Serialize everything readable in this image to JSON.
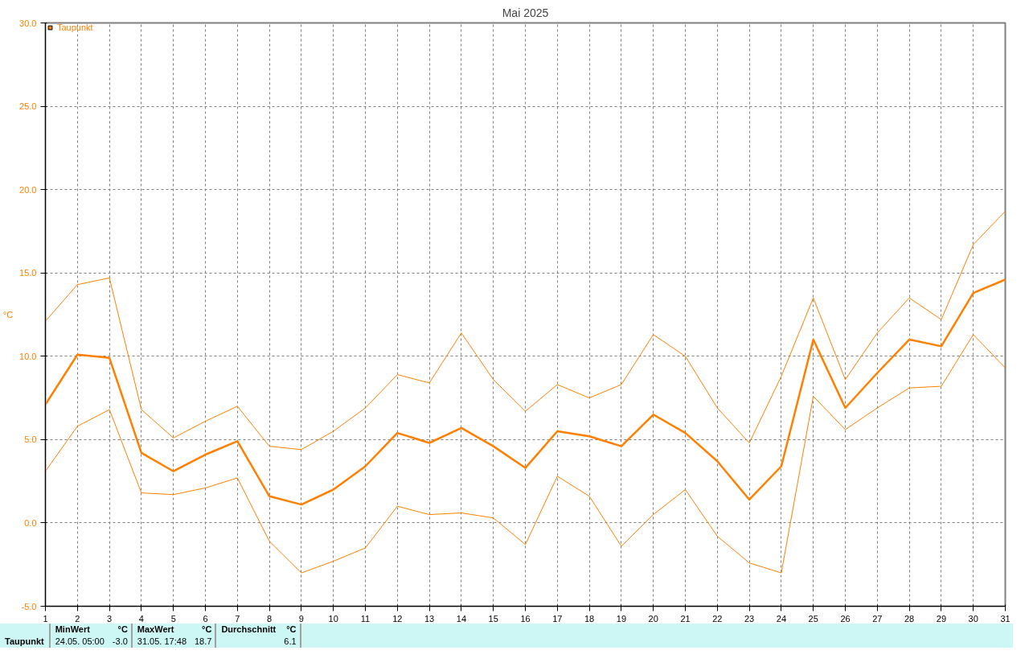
{
  "chart_data": {
    "type": "line",
    "title": "Mai 2025",
    "ylabel": "°C",
    "x": [
      1,
      2,
      3,
      4,
      5,
      6,
      7,
      8,
      9,
      10,
      11,
      12,
      13,
      14,
      15,
      16,
      17,
      18,
      19,
      20,
      21,
      22,
      23,
      24,
      25,
      26,
      27,
      28,
      29,
      30,
      31
    ],
    "series": [
      {
        "name": "Taupunkt",
        "color": "#ff8000",
        "values": [
          7.1,
          10.1,
          9.9,
          4.2,
          3.1,
          4.1,
          4.9,
          1.6,
          1.1,
          2.0,
          3.4,
          5.4,
          4.8,
          5.7,
          4.6,
          3.3,
          5.5,
          5.2,
          4.6,
          6.5,
          5.4,
          3.7,
          1.4,
          3.4,
          11.0,
          6.9,
          9.0,
          11.0,
          10.6,
          13.8,
          14.6
        ]
      },
      {
        "color": "#ff8000",
        "values": [
          12.1,
          14.3,
          14.7,
          6.8,
          5.1,
          6.1,
          7.0,
          4.6,
          4.4,
          5.5,
          6.9,
          8.9,
          8.4,
          11.4,
          8.6,
          6.7,
          8.3,
          7.5,
          8.3,
          11.3,
          10.0,
          6.9,
          4.8,
          8.8,
          13.5,
          8.6,
          11.4,
          13.5,
          12.2,
          16.7,
          18.7
        ]
      },
      {
        "color": "#ff8000",
        "values": [
          3.1,
          5.8,
          6.8,
          1.8,
          1.7,
          2.1,
          2.7,
          -1.1,
          -3.0,
          -2.3,
          -1.5,
          1.0,
          0.5,
          0.6,
          0.3,
          -1.3,
          2.8,
          1.6,
          -1.4,
          0.5,
          2.0,
          -0.8,
          -2.4,
          -3.0,
          7.6,
          5.6,
          6.9,
          8.1,
          8.2,
          11.3,
          9.3
        ]
      }
    ],
    "xlim": [
      1,
      31
    ],
    "xticks": [
      1,
      2,
      3,
      4,
      5,
      6,
      7,
      8,
      9,
      10,
      11,
      12,
      13,
      14,
      15,
      16,
      17,
      18,
      19,
      20,
      21,
      22,
      23,
      24,
      25,
      26,
      27,
      28,
      29,
      30,
      31
    ],
    "ylim": [
      -5,
      30
    ],
    "yticks": [
      {
        "value": -5,
        "label": "-5.0"
      },
      {
        "value": 0,
        "label": "0.0"
      },
      {
        "value": 5,
        "label": "5.0"
      },
      {
        "value": 10,
        "label": "10.0"
      },
      {
        "value": 15,
        "label": "15.0"
      },
      {
        "value": 20,
        "label": "20.0"
      },
      {
        "value": 25,
        "label": "25.0"
      },
      {
        "value": 30,
        "label": "30.0"
      }
    ],
    "grid": true,
    "legend": "top left",
    "line_style": "solid",
    "marker": "none",
    "annotations": [
      "Taupunkt",
      "MinWert",
      "°C",
      "24.05.  05:00",
      "-3.0",
      "MaxWert",
      "°C",
      "31.05.  17:48",
      "18.7",
      "Durchschnitt",
      "°C",
      "6.1"
    ]
  }
}
